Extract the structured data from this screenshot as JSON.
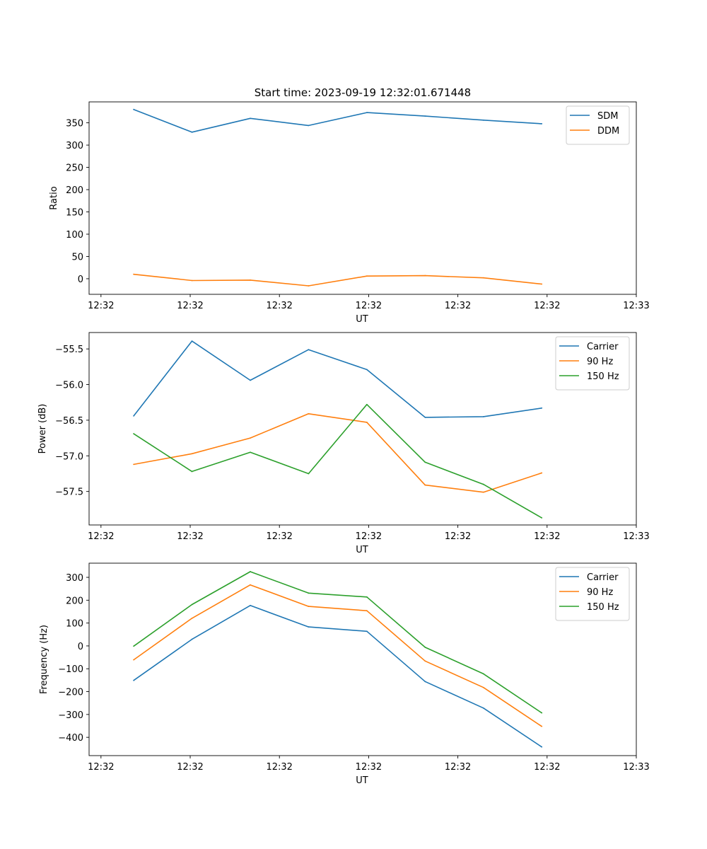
{
  "colors": {
    "blue": "#1f77b4",
    "orange": "#ff7f0e",
    "green": "#2ca02c"
  },
  "chart_data": [
    {
      "type": "line",
      "title": "Start time: 2023-09-19 12:32:01.671448",
      "xlabel": "UT",
      "ylabel": "Ratio",
      "xlim": [
        0,
        9.2
      ],
      "ylim": [
        -35,
        397
      ],
      "x": [
        0.75,
        1.73,
        2.71,
        3.69,
        4.67,
        5.65,
        6.63,
        7.61
      ],
      "x_ticks": [
        0.2,
        1.7,
        3.2,
        4.7,
        6.2,
        7.7,
        9.2
      ],
      "x_tick_labels": [
        "12:32",
        "12:32",
        "12:32",
        "12:32",
        "12:32",
        "12:32",
        "12:33"
      ],
      "y_ticks": [
        0,
        50,
        100,
        150,
        200,
        250,
        300,
        350
      ],
      "y_tick_labels": [
        "0",
        "50",
        "100",
        "150",
        "200",
        "250",
        "300",
        "350"
      ],
      "legend": "top-right",
      "series": [
        {
          "name": "SDM",
          "color": "#1f77b4",
          "values": [
            380,
            329,
            360,
            344,
            373,
            365,
            356,
            348
          ]
        },
        {
          "name": "DDM",
          "color": "#ff7f0e",
          "values": [
            10,
            -4,
            -3,
            -16,
            6,
            7,
            2,
            -12
          ]
        }
      ]
    },
    {
      "type": "line",
      "title": "",
      "xlabel": "UT",
      "ylabel": "Power (dB)",
      "xlim": [
        0,
        9.2
      ],
      "ylim": [
        -57.97,
        -55.27
      ],
      "x": [
        0.75,
        1.73,
        2.71,
        3.69,
        4.67,
        5.65,
        6.63,
        7.61
      ],
      "x_ticks": [
        0.2,
        1.7,
        3.2,
        4.7,
        6.2,
        7.7,
        9.2
      ],
      "x_tick_labels": [
        "12:32",
        "12:32",
        "12:32",
        "12:32",
        "12:32",
        "12:32",
        "12:33"
      ],
      "y_ticks": [
        -57.5,
        -57.0,
        -56.5,
        -56.0,
        -55.5
      ],
      "y_tick_labels": [
        "−57.5",
        "−57.0",
        "−56.5",
        "−56.0",
        "−55.5"
      ],
      "legend": "top-right",
      "series": [
        {
          "name": "Carrier",
          "color": "#1f77b4",
          "values": [
            -56.44,
            -55.39,
            -55.94,
            -55.51,
            -55.79,
            -56.46,
            -56.45,
            -56.33
          ]
        },
        {
          "name": "90 Hz",
          "color": "#ff7f0e",
          "values": [
            -57.12,
            -56.97,
            -56.75,
            -56.41,
            -56.53,
            -57.41,
            -57.51,
            -57.24
          ]
        },
        {
          "name": "150 Hz",
          "color": "#2ca02c",
          "values": [
            -56.69,
            -57.22,
            -56.95,
            -57.25,
            -56.28,
            -57.09,
            -57.4,
            -57.87
          ]
        }
      ]
    },
    {
      "type": "line",
      "title": "",
      "xlabel": "UT",
      "ylabel": "Frequency (Hz)",
      "xlim": [
        0,
        9.2
      ],
      "ylim": [
        -480,
        362
      ],
      "x": [
        0.75,
        1.73,
        2.71,
        3.69,
        4.67,
        5.65,
        6.63,
        7.61
      ],
      "x_ticks": [
        0.2,
        1.7,
        3.2,
        4.7,
        6.2,
        7.7,
        9.2
      ],
      "x_tick_labels": [
        "12:32",
        "12:32",
        "12:32",
        "12:32",
        "12:32",
        "12:32",
        "12:33"
      ],
      "y_ticks": [
        -400,
        -300,
        -200,
        -100,
        0,
        100,
        200,
        300
      ],
      "y_tick_labels": [
        "−400",
        "−300",
        "−200",
        "−100",
        "0",
        "100",
        "200",
        "300"
      ],
      "legend": "top-right",
      "series": [
        {
          "name": "Carrier",
          "color": "#1f77b4",
          "values": [
            -151,
            29,
            177,
            83,
            64,
            -156,
            -272,
            -442
          ]
        },
        {
          "name": "90 Hz",
          "color": "#ff7f0e",
          "values": [
            -61,
            121,
            267,
            173,
            154,
            -66,
            -182,
            -352
          ]
        },
        {
          "name": "150 Hz",
          "color": "#2ca02c",
          "values": [
            -1,
            181,
            325,
            231,
            214,
            -6,
            -122,
            -293
          ]
        }
      ]
    }
  ]
}
